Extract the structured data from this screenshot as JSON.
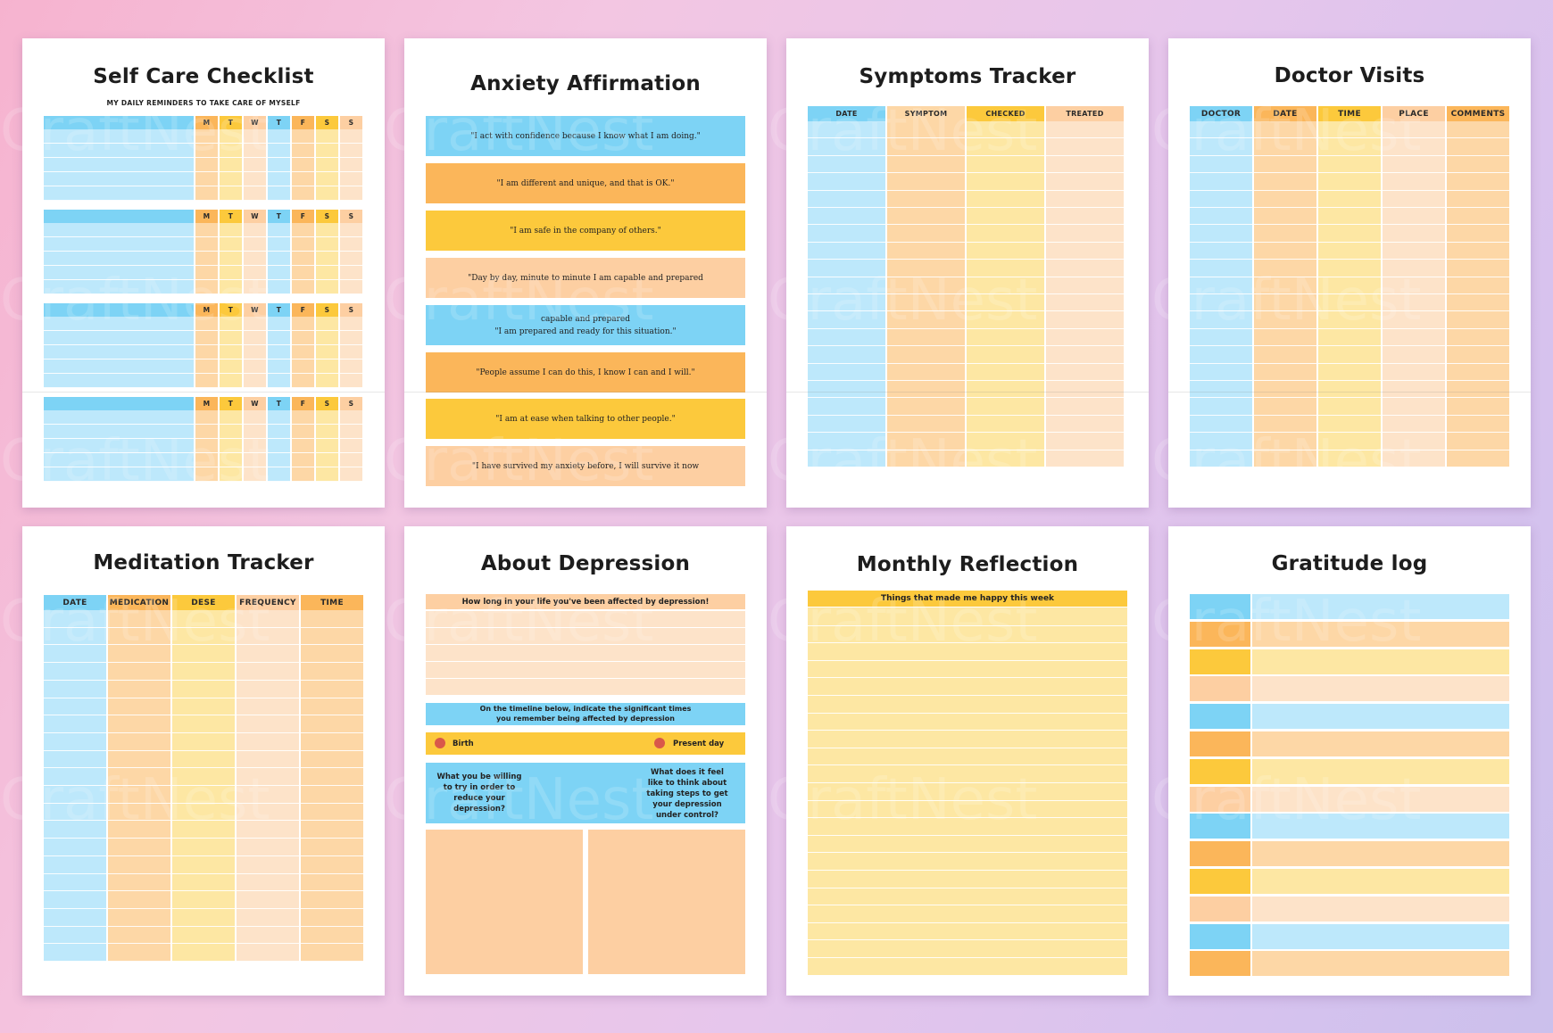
{
  "watermark": "CraftNest",
  "colors": {
    "blue": "#7dd3f5",
    "blue_light": "#bde8fb",
    "orange": "#fbb65a",
    "orange_light": "#fdd7a6",
    "yellow": "#fcc93c",
    "yellow_light": "#fde7a3",
    "peach": "#fdcfa2",
    "peach_light": "#fde3c9"
  },
  "self_care": {
    "title": "Self Care Checklist",
    "subtitle": "MY DAILY REMINDERS TO TAKE CARE OF MYSELF",
    "days": [
      "M",
      "T",
      "W",
      "T",
      "F",
      "S",
      "S"
    ]
  },
  "anxiety": {
    "title": "Anxiety Affirmation",
    "affirmations": [
      "\"I act with confidence because I know what I am doing.\"",
      "\"I am different and unique, and that is OK.\"",
      "\"I am safe in the company of others.\"",
      "\"Day by day, minute to minute I am capable and prepared",
      "capable and prepared\n\"I am prepared and ready for this situation.\"",
      "\"People assume I can do this, I know I can and I will.\"",
      "\"I am at ease when talking to other people.\"",
      "\"I have survived my anxiety before, I will survive it now"
    ]
  },
  "symptoms": {
    "title": "Symptoms Tracker",
    "columns": [
      "DATE",
      "SYMPTOM",
      "CHECKED",
      "TREATED"
    ]
  },
  "doctor": {
    "title": "Doctor Visits",
    "columns": [
      "DOCTOR",
      "DATE",
      "TIME",
      "PLACE",
      "COMMENTS"
    ]
  },
  "meditation": {
    "title": "Meditation Tracker",
    "columns": [
      "DATE",
      "MEDICATION",
      "DESE",
      "FREQUENCY",
      "TIME"
    ]
  },
  "depression": {
    "title": "About Depression",
    "question1": "How long in your life you've been affected by depression!",
    "timeline_text": "On the timeline below, indicate the significant times\nyou remember being affected by depression",
    "birth_label": "Birth",
    "present_label": "Present day",
    "question_left": "What you be willing\nto try in order to\nreduce your\ndepression?",
    "question_right": "What does it feel\nlike to think about\ntaking steps to get\nyour depression\nunder control?"
  },
  "monthly": {
    "title": "Monthly Reflection",
    "header": "Things that made me happy this week"
  },
  "gratitude": {
    "title": "Gratitude log"
  }
}
